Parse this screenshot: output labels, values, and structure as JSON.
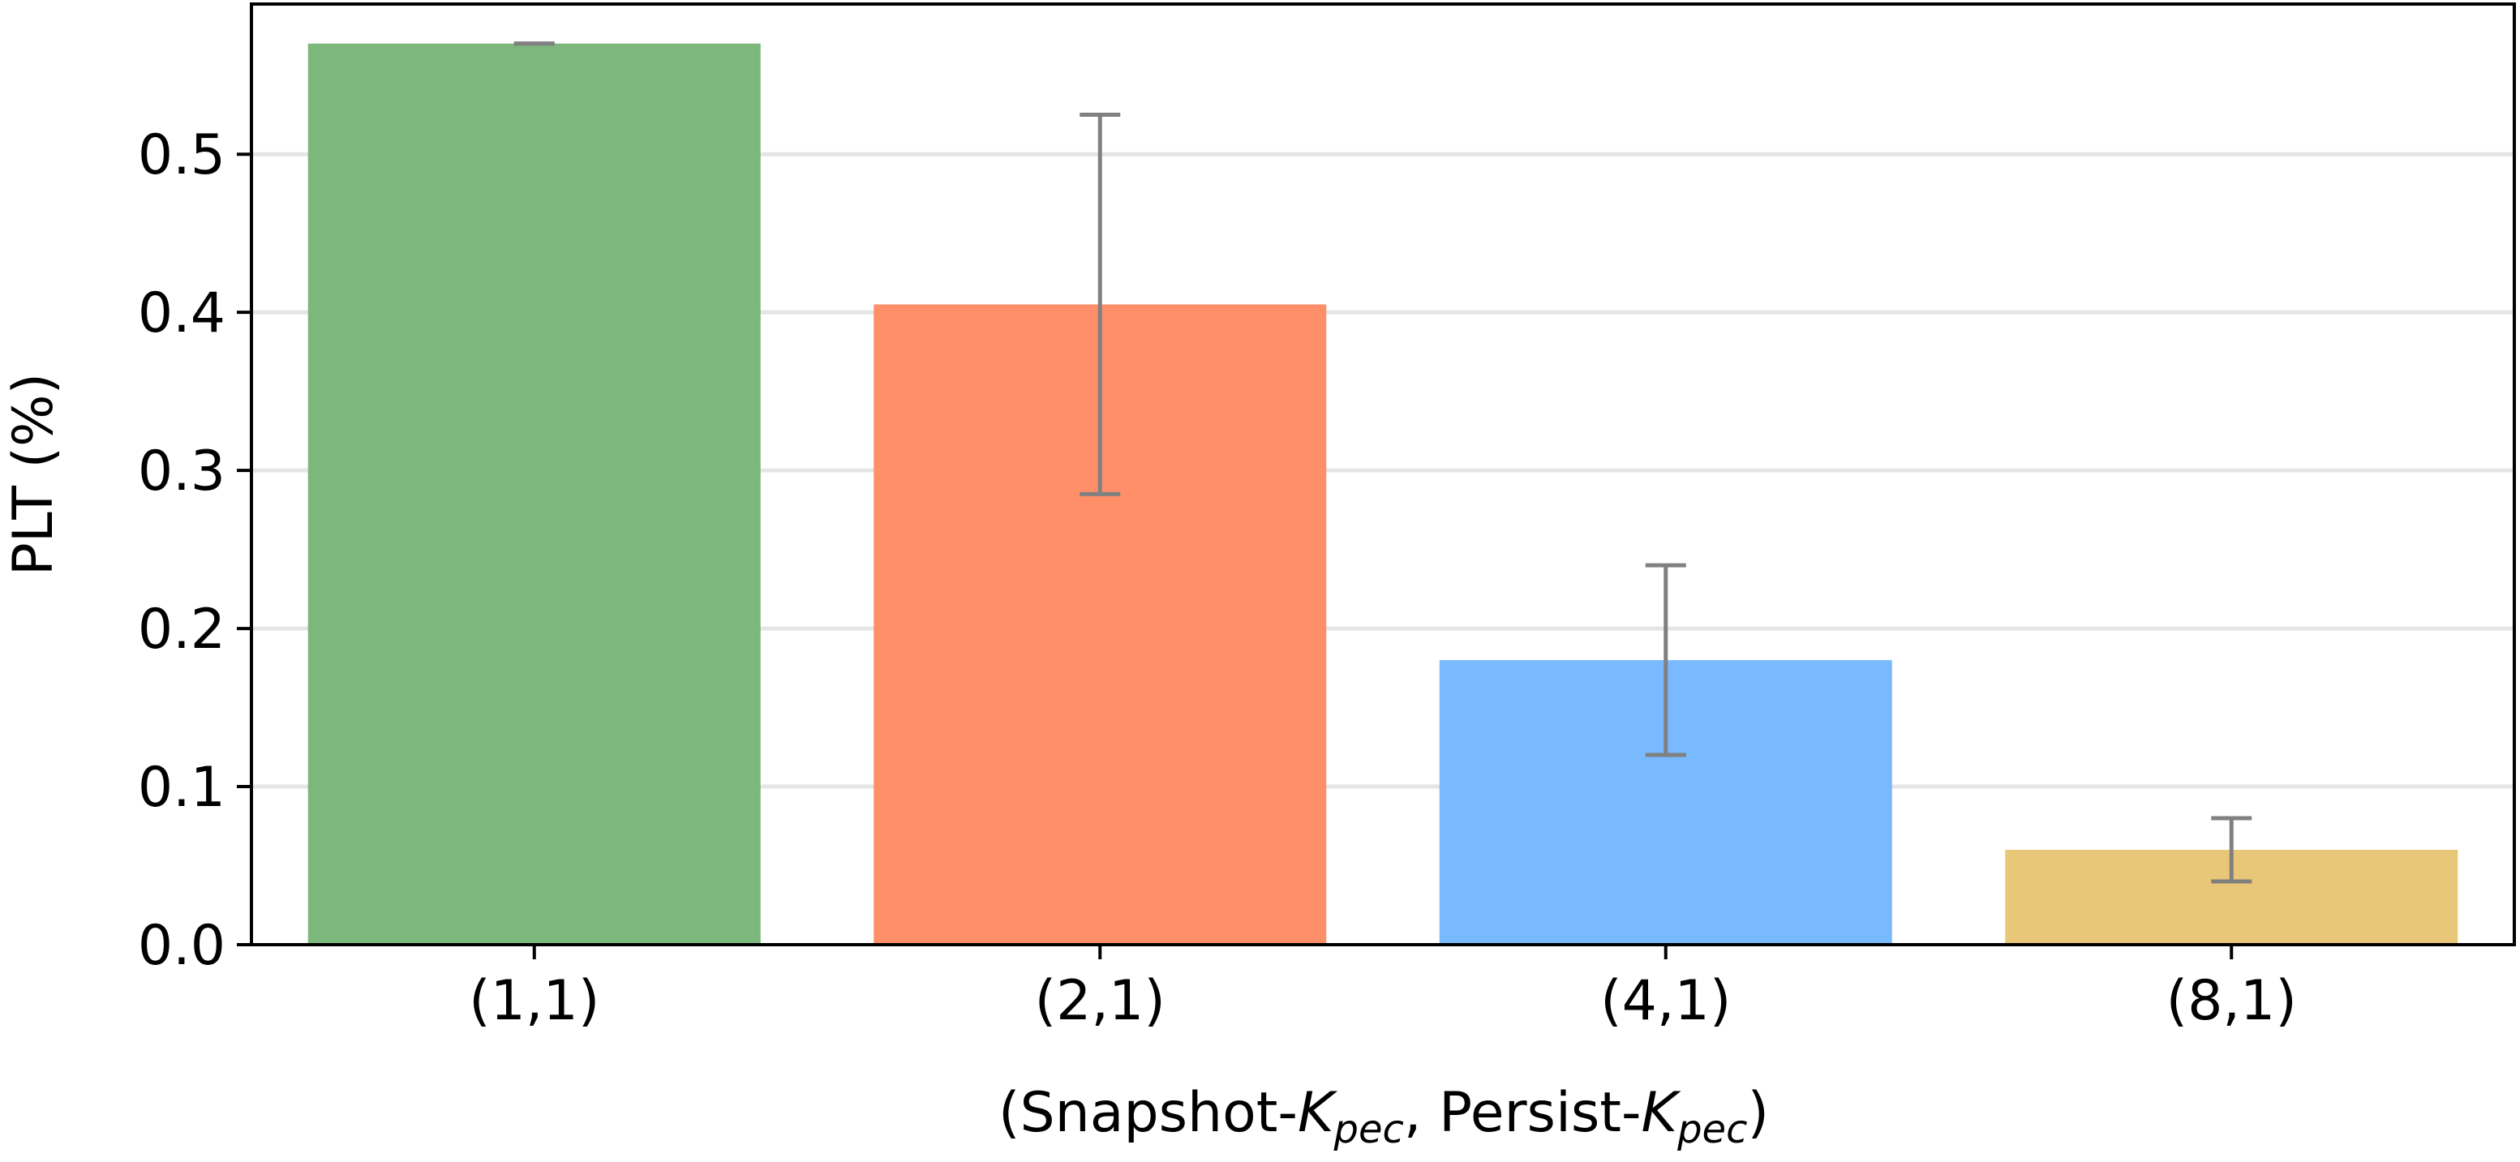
{
  "chart_data": {
    "type": "bar",
    "categories": [
      "(1,1)",
      "(2,1)",
      "(4,1)",
      "(8,1)"
    ],
    "values": [
      0.57,
      0.405,
      0.18,
      0.06
    ],
    "error_low": [
      0.57,
      0.285,
      0.12,
      0.04
    ],
    "error_high": [
      0.57,
      0.525,
      0.24,
      0.08
    ],
    "bar_colors": [
      "#7cb87c",
      "#fe8f68",
      "#79b9fd",
      "#e8c779"
    ],
    "error_color": "#808080",
    "grid_color": "#e5e5e5",
    "ylim": [
      0,
      0.595
    ],
    "yticks": [
      "0.0",
      "0.1",
      "0.2",
      "0.3",
      "0.4",
      "0.5"
    ],
    "ytick_values": [
      0,
      0.1,
      0.2,
      0.3,
      0.4,
      0.5
    ],
    "ylabel": "PLT (%)",
    "xlabel": {
      "p1": "(Snapshot-",
      "k1": "K",
      "s1": "pec",
      "p2": ", Persist-",
      "k2": "K",
      "s2": "pec",
      "p3": ")"
    },
    "grid": "horizontal"
  }
}
